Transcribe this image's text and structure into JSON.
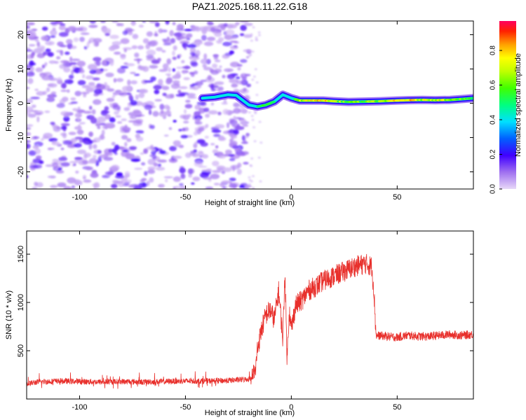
{
  "figure_title": "PAZ1.2025.168.11.22.G18",
  "colors": {
    "background": "#ffffff",
    "axis": "#000000",
    "snr_line": "#e8302c",
    "spectrogram_low": "#b390f0",
    "spectrogram_mid": "#6a1fe0"
  },
  "chart_data": [
    {
      "type": "heatmap",
      "title": "",
      "xlabel": "Height of straight line (km)",
      "ylabel": "Frequency (Hz)",
      "xlim": [
        -125,
        86
      ],
      "ylim": [
        -25,
        24
      ],
      "x_ticks": [
        -100,
        -50,
        0,
        50
      ],
      "y_ticks": [
        -20,
        -10,
        0,
        10,
        20
      ],
      "x_tick_labels": [
        "-100",
        "-50",
        "0",
        "50"
      ],
      "y_tick_labels": [
        "-20",
        "-10",
        "0",
        "10",
        "20"
      ],
      "grid": false,
      "colorbar": {
        "label": "Normalized spectral amplitude",
        "range": [
          0,
          0.97
        ],
        "ticks": [
          0.0,
          0.2,
          0.4,
          0.6,
          0.8
        ],
        "tick_labels": [
          "0.0",
          "0.2",
          "0.4",
          "0.6",
          "0.8"
        ],
        "colormap": "rainbow (purple to red)"
      },
      "noise_region_x": [
        -125,
        -20
      ],
      "ridge": [
        {
          "x": -42,
          "y": 1.5,
          "amplitude": 0.25
        },
        {
          "x": -36,
          "y": 1.8,
          "amplitude": 0.28
        },
        {
          "x": -30,
          "y": 2.5,
          "amplitude": 0.35
        },
        {
          "x": -26,
          "y": 2.3,
          "amplitude": 0.3
        },
        {
          "x": -20,
          "y": -0.5,
          "amplitude": 0.35
        },
        {
          "x": -16,
          "y": -1.0,
          "amplitude": 0.45
        },
        {
          "x": -12,
          "y": -0.5,
          "amplitude": 0.55
        },
        {
          "x": -8,
          "y": 0.5,
          "amplitude": 0.45
        },
        {
          "x": -4,
          "y": 2.5,
          "amplitude": 0.3
        },
        {
          "x": 0,
          "y": 1.5,
          "amplitude": 0.35
        },
        {
          "x": 4,
          "y": 0.8,
          "amplitude": 0.7
        },
        {
          "x": 10,
          "y": 0.8,
          "amplitude": 0.75
        },
        {
          "x": 15,
          "y": 0.8,
          "amplitude": 0.8
        },
        {
          "x": 20,
          "y": 0.6,
          "amplitude": 0.7
        },
        {
          "x": 27,
          "y": 0.4,
          "amplitude": 0.6
        },
        {
          "x": 35,
          "y": 0.5,
          "amplitude": 0.6
        },
        {
          "x": 42,
          "y": 0.6,
          "amplitude": 0.65
        },
        {
          "x": 50,
          "y": 0.8,
          "amplitude": 0.75
        },
        {
          "x": 55,
          "y": 0.9,
          "amplitude": 0.8
        },
        {
          "x": 62,
          "y": 1.0,
          "amplitude": 0.7
        },
        {
          "x": 68,
          "y": 0.9,
          "amplitude": 0.75
        },
        {
          "x": 75,
          "y": 1.0,
          "amplitude": 0.7
        },
        {
          "x": 82,
          "y": 1.3,
          "amplitude": 0.6
        },
        {
          "x": 86,
          "y": 1.5,
          "amplitude": 0.5
        }
      ]
    },
    {
      "type": "line",
      "title": "",
      "xlabel": "Height of straight line (km)",
      "ylabel": "SNR (10 * v/v)",
      "xlim": [
        -125,
        86
      ],
      "ylim": [
        0,
        1740
      ],
      "x_ticks": [
        -100,
        -50,
        0,
        50
      ],
      "y_ticks": [
        500,
        1000,
        1500
      ],
      "x_tick_labels": [
        "-100",
        "-50",
        "0",
        "50"
      ],
      "y_tick_labels": [
        "500",
        "1000",
        "1500"
      ],
      "grid": false,
      "series": [
        {
          "color": "#e8302c",
          "x": [
            -125,
            -120,
            -110,
            -100,
            -90,
            -80,
            -70,
            -60,
            -50,
            -40,
            -30,
            -20,
            -17,
            -16,
            -14,
            -12,
            -10,
            -8,
            -6,
            -4,
            -3,
            -2,
            -1,
            0,
            2,
            5,
            8,
            12,
            15,
            20,
            25,
            30,
            35,
            38,
            39,
            40,
            45,
            50,
            55,
            60,
            65,
            70,
            75,
            80,
            86
          ],
          "y": [
            150,
            170,
            180,
            175,
            170,
            175,
            170,
            175,
            180,
            180,
            185,
            200,
            250,
            500,
            700,
            850,
            900,
            800,
            1100,
            600,
            1300,
            400,
            900,
            700,
            950,
            1000,
            1100,
            1150,
            1200,
            1250,
            1300,
            1350,
            1380,
            1350,
            1100,
            650,
            640,
            630,
            650,
            640,
            640,
            650,
            660,
            650,
            660
          ]
        }
      ]
    }
  ]
}
